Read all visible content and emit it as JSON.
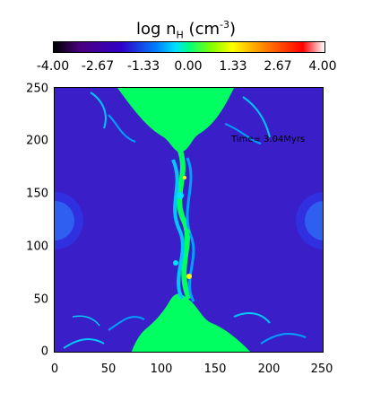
{
  "colorbar": {
    "title": "log n",
    "title_sub": "H",
    "title_unit": " (cm",
    "title_sup": "-3",
    "title_close": ")",
    "ticks": [
      "-4.00",
      "-2.67",
      "-1.33",
      "0.00",
      "1.33",
      "2.67",
      "4.00"
    ]
  },
  "plot": {
    "time_label": "Time= 3.04Myrs",
    "y_ticks": [
      "250",
      "200",
      "150",
      "100",
      "50",
      "0"
    ],
    "x_ticks": [
      "0",
      "50",
      "100",
      "150",
      "200",
      "250"
    ]
  },
  "colors": {
    "background_medium": "#3a1fc9",
    "dense_gas": "#00ff60",
    "filaments": "#00c8ff"
  }
}
